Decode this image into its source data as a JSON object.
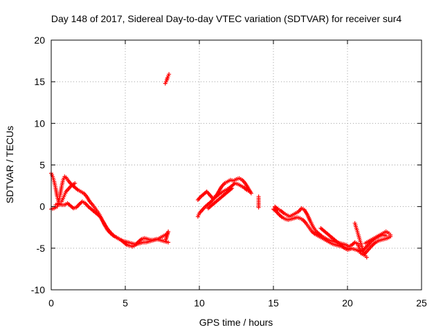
{
  "chart_data": {
    "type": "scatter",
    "title": "Day 148 of 2017, Sidereal Day-to-day VTEC variation (SDTVAR) for receiver sur4",
    "xlabel": "GPS time / hours",
    "ylabel": "SDTVAR / TECUs",
    "xlim": [
      0,
      25
    ],
    "ylim": [
      -10,
      20
    ],
    "xticks": [
      0,
      5,
      10,
      15,
      20,
      25
    ],
    "yticks": [
      -10,
      -5,
      0,
      5,
      10,
      15,
      20
    ],
    "grid": true,
    "marker": "+",
    "color": "#ff0000",
    "series": [
      {
        "name": "sur4",
        "tracks": [
          [
            [
              0.0,
              4.0
            ],
            [
              0.1,
              3.6
            ],
            [
              0.2,
              3.0
            ],
            [
              0.3,
              2.2
            ],
            [
              0.4,
              1.2
            ],
            [
              0.5,
              0.6
            ],
            [
              0.6,
              0.4
            ],
            [
              0.7,
              0.6
            ],
            [
              0.8,
              1.0
            ],
            [
              0.9,
              1.4
            ],
            [
              1.0,
              1.8
            ],
            [
              1.2,
              2.2
            ],
            [
              1.4,
              2.6
            ],
            [
              1.6,
              2.8
            ]
          ],
          [
            [
              0.0,
              -0.3
            ],
            [
              0.2,
              -0.2
            ],
            [
              0.4,
              0.0
            ],
            [
              0.5,
              0.6
            ],
            [
              0.6,
              1.4
            ],
            [
              0.7,
              2.4
            ],
            [
              0.8,
              3.2
            ],
            [
              0.9,
              3.6
            ],
            [
              1.0,
              3.5
            ],
            [
              1.2,
              3.0
            ],
            [
              1.4,
              2.6
            ],
            [
              1.6,
              2.3
            ],
            [
              1.8,
              2.0
            ],
            [
              2.0,
              1.8
            ],
            [
              2.2,
              1.6
            ],
            [
              2.4,
              1.2
            ],
            [
              2.6,
              0.6
            ],
            [
              2.8,
              0.2
            ],
            [
              3.0,
              -0.3
            ],
            [
              3.2,
              -0.8
            ],
            [
              3.4,
              -1.5
            ],
            [
              3.6,
              -2.2
            ],
            [
              3.8,
              -2.8
            ],
            [
              4.0,
              -3.2
            ],
            [
              4.2,
              -3.5
            ],
            [
              4.4,
              -3.7
            ],
            [
              4.6,
              -3.9
            ],
            [
              4.8,
              -4.1
            ],
            [
              5.0,
              -4.2
            ],
            [
              5.2,
              -4.3
            ],
            [
              5.4,
              -4.4
            ],
            [
              5.6,
              -4.5
            ],
            [
              5.8,
              -4.5
            ],
            [
              6.0,
              -4.4
            ],
            [
              6.2,
              -4.3
            ],
            [
              6.4,
              -4.3
            ],
            [
              6.6,
              -4.2
            ],
            [
              6.8,
              -4.1
            ],
            [
              7.0,
              -4.0
            ],
            [
              7.2,
              -3.9
            ],
            [
              7.4,
              -3.7
            ],
            [
              7.6,
              -3.5
            ],
            [
              7.8,
              -3.3
            ]
          ],
          [
            [
              0.3,
              0.2
            ],
            [
              0.5,
              0.3
            ],
            [
              0.7,
              0.2
            ],
            [
              0.9,
              0.2
            ],
            [
              1.1,
              0.4
            ],
            [
              1.3,
              0.1
            ],
            [
              1.5,
              -0.2
            ],
            [
              1.7,
              -0.1
            ],
            [
              1.9,
              0.3
            ],
            [
              2.1,
              0.6
            ],
            [
              2.3,
              0.4
            ],
            [
              2.5,
              0.0
            ],
            [
              2.7,
              -0.3
            ],
            [
              2.9,
              -0.6
            ],
            [
              3.1,
              -0.9
            ],
            [
              3.3,
              -1.2
            ],
            [
              3.5,
              -1.8
            ],
            [
              3.7,
              -2.4
            ],
            [
              3.9,
              -2.9
            ],
            [
              4.1,
              -3.3
            ],
            [
              4.3,
              -3.6
            ],
            [
              4.5,
              -3.8
            ],
            [
              4.7,
              -4.0
            ],
            [
              4.9,
              -4.3
            ],
            [
              5.1,
              -4.6
            ],
            [
              5.3,
              -4.7
            ],
            [
              5.5,
              -4.8
            ],
            [
              5.7,
              -4.6
            ],
            [
              5.9,
              -4.2
            ],
            [
              6.1,
              -3.9
            ],
            [
              6.3,
              -3.8
            ],
            [
              6.5,
              -3.9
            ],
            [
              6.7,
              -4.0
            ],
            [
              6.9,
              -4.0
            ],
            [
              7.1,
              -3.9
            ],
            [
              7.3,
              -4.0
            ],
            [
              7.5,
              -4.1
            ],
            [
              7.7,
              -4.2
            ],
            [
              7.9,
              -4.3
            ]
          ],
          [
            [
              7.9,
              -3.0
            ],
            [
              7.85,
              -3.3
            ],
            [
              7.8,
              -3.6
            ],
            [
              7.75,
              -3.9
            ]
          ],
          [
            [
              7.7,
              14.8
            ],
            [
              7.75,
              15.0
            ],
            [
              7.8,
              15.2
            ],
            [
              7.85,
              15.5
            ],
            [
              7.9,
              15.7
            ],
            [
              7.95,
              15.9
            ]
          ],
          [
            [
              9.9,
              -1.2
            ],
            [
              10.0,
              -0.8
            ],
            [
              10.2,
              -0.4
            ],
            [
              10.4,
              0.0
            ],
            [
              10.6,
              0.3
            ],
            [
              10.8,
              0.6
            ],
            [
              11.0,
              1.0
            ],
            [
              11.2,
              1.3
            ],
            [
              11.4,
              1.6
            ],
            [
              11.6,
              1.8
            ],
            [
              11.8,
              2.0
            ],
            [
              12.0,
              2.2
            ],
            [
              12.2,
              2.5
            ],
            [
              12.4,
              2.8
            ],
            [
              12.6,
              2.7
            ],
            [
              12.8,
              2.5
            ],
            [
              13.0,
              2.3
            ],
            [
              13.2,
              2.0
            ],
            [
              13.4,
              1.8
            ]
          ],
          [
            [
              9.9,
              0.8
            ],
            [
              10.1,
              1.2
            ],
            [
              10.3,
              1.5
            ],
            [
              10.5,
              1.8
            ],
            [
              10.7,
              1.4
            ],
            [
              10.9,
              1.0
            ],
            [
              11.1,
              1.2
            ],
            [
              11.3,
              1.8
            ],
            [
              11.5,
              2.4
            ],
            [
              11.7,
              2.8
            ],
            [
              11.9,
              3.0
            ],
            [
              12.1,
              3.2
            ],
            [
              12.3,
              3.1
            ],
            [
              12.5,
              3.3
            ],
            [
              12.7,
              3.4
            ],
            [
              12.9,
              3.2
            ],
            [
              13.1,
              2.8
            ],
            [
              13.3,
              2.2
            ],
            [
              13.5,
              1.6
            ]
          ],
          [
            [
              10.6,
              -0.2
            ],
            [
              10.8,
              0.1
            ],
            [
              11.0,
              0.4
            ],
            [
              11.2,
              0.7
            ],
            [
              11.4,
              1.0
            ],
            [
              11.6,
              1.3
            ],
            [
              11.8,
              1.6
            ],
            [
              12.0,
              1.9
            ],
            [
              12.2,
              2.2
            ]
          ],
          [
            [
              14.0,
              1.2
            ],
            [
              14.0,
              0.6
            ],
            [
              14.0,
              -0.1
            ]
          ],
          [
            [
              15.0,
              -0.3
            ],
            [
              15.2,
              -0.6
            ],
            [
              15.4,
              -1.0
            ],
            [
              15.6,
              -1.3
            ],
            [
              15.8,
              -1.5
            ],
            [
              16.0,
              -1.6
            ],
            [
              16.2,
              -1.5
            ],
            [
              16.4,
              -1.4
            ],
            [
              16.6,
              -1.3
            ],
            [
              16.8,
              -1.4
            ],
            [
              17.0,
              -1.6
            ],
            [
              17.2,
              -2.0
            ],
            [
              17.4,
              -2.5
            ],
            [
              17.6,
              -3.0
            ],
            [
              17.8,
              -3.3
            ],
            [
              18.0,
              -3.5
            ],
            [
              18.2,
              -3.7
            ],
            [
              18.4,
              -3.9
            ],
            [
              18.6,
              -4.1
            ],
            [
              18.8,
              -4.3
            ],
            [
              19.0,
              -4.5
            ],
            [
              19.2,
              -4.6
            ],
            [
              19.4,
              -4.7
            ],
            [
              19.6,
              -4.8
            ],
            [
              19.8,
              -4.9
            ],
            [
              20.0,
              -5.0
            ],
            [
              20.2,
              -5.0
            ],
            [
              20.4,
              -5.1
            ],
            [
              20.6,
              -5.2
            ],
            [
              20.8,
              -5.4
            ],
            [
              21.0,
              -5.3
            ],
            [
              21.2,
              -5.0
            ],
            [
              21.4,
              -4.6
            ],
            [
              21.6,
              -4.2
            ],
            [
              21.8,
              -3.9
            ],
            [
              22.0,
              -3.7
            ],
            [
              22.2,
              -3.5
            ],
            [
              22.4,
              -3.4
            ],
            [
              22.6,
              -3.5
            ]
          ],
          [
            [
              15.1,
              0.0
            ],
            [
              15.3,
              -0.3
            ],
            [
              15.5,
              -0.5
            ],
            [
              15.7,
              -0.8
            ],
            [
              15.9,
              -1.0
            ],
            [
              16.1,
              -1.2
            ],
            [
              16.3,
              -1.0
            ],
            [
              16.5,
              -0.8
            ],
            [
              16.7,
              -0.6
            ],
            [
              16.9,
              -0.2
            ],
            [
              17.1,
              -0.4
            ],
            [
              17.3,
              -1.0
            ],
            [
              17.5,
              -1.8
            ],
            [
              17.7,
              -2.5
            ],
            [
              17.9,
              -3.0
            ],
            [
              18.1,
              -3.3
            ],
            [
              18.3,
              -3.6
            ],
            [
              18.5,
              -3.8
            ],
            [
              18.7,
              -4.0
            ],
            [
              18.9,
              -4.1
            ],
            [
              19.1,
              -4.2
            ],
            [
              19.3,
              -4.3
            ],
            [
              19.5,
              -4.4
            ],
            [
              19.7,
              -4.5
            ],
            [
              19.9,
              -4.6
            ],
            [
              20.1,
              -4.8
            ],
            [
              20.3,
              -4.6
            ],
            [
              20.5,
              -4.3
            ],
            [
              20.7,
              -4.5
            ],
            [
              20.9,
              -5.6
            ],
            [
              21.1,
              -5.8
            ],
            [
              21.3,
              -5.4
            ],
            [
              21.5,
              -5.0
            ],
            [
              21.7,
              -4.6
            ],
            [
              21.9,
              -4.3
            ],
            [
              22.1,
              -4.1
            ],
            [
              22.3,
              -4.0
            ],
            [
              22.5,
              -3.9
            ],
            [
              22.7,
              -3.8
            ],
            [
              22.9,
              -3.6
            ]
          ],
          [
            [
              18.2,
              -2.6
            ],
            [
              18.4,
              -2.9
            ],
            [
              18.6,
              -3.2
            ],
            [
              18.8,
              -3.5
            ],
            [
              19.0,
              -3.8
            ],
            [
              19.2,
              -4.1
            ],
            [
              19.4,
              -4.4
            ],
            [
              19.6,
              -4.7
            ],
            [
              19.8,
              -5.0
            ],
            [
              20.0,
              -5.2
            ],
            [
              20.2,
              -5.1
            ]
          ],
          [
            [
              20.5,
              -2.0
            ],
            [
              20.6,
              -2.6
            ],
            [
              20.7,
              -3.2
            ],
            [
              20.8,
              -3.8
            ],
            [
              20.9,
              -4.4
            ],
            [
              21.0,
              -5.0
            ],
            [
              21.1,
              -5.5
            ],
            [
              21.2,
              -5.9
            ],
            [
              21.3,
              -6.1
            ]
          ],
          [
            [
              21.2,
              -4.4
            ],
            [
              21.4,
              -4.2
            ],
            [
              21.6,
              -4.0
            ],
            [
              21.8,
              -3.8
            ],
            [
              22.0,
              -3.6
            ],
            [
              22.2,
              -3.4
            ],
            [
              22.4,
              -3.2
            ],
            [
              22.6,
              -3.0
            ],
            [
              22.8,
              -3.2
            ],
            [
              22.9,
              -3.4
            ]
          ]
        ]
      }
    ]
  }
}
